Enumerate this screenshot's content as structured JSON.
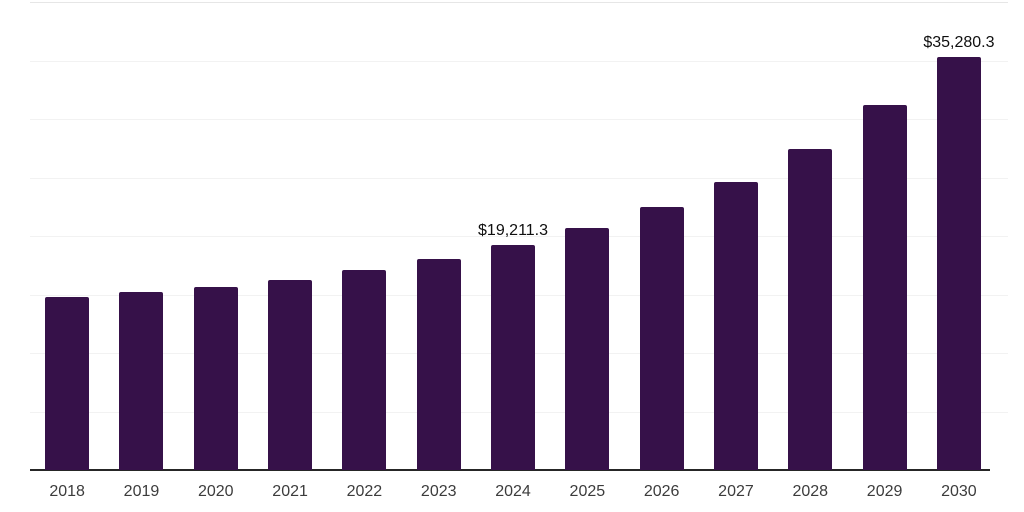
{
  "colors": {
    "background": "#ffffff",
    "bar": "#361149",
    "gridline": "#f2f2f2",
    "top_gridline": "#e6e6e6",
    "axis_line": "#262626",
    "data_label": "#0f0f0f",
    "tick_label": "#3c3c3c"
  },
  "chart_data": {
    "type": "bar",
    "title": "",
    "xlabel": "",
    "ylabel": "",
    "categories": [
      "2018",
      "2019",
      "2020",
      "2021",
      "2022",
      "2023",
      "2024",
      "2025",
      "2026",
      "2027",
      "2028",
      "2029",
      "2030"
    ],
    "values": [
      14770,
      15240,
      15670,
      16270,
      17130,
      18070,
      19211.3,
      20720,
      22520,
      24580,
      27400,
      31170,
      35280.3
    ],
    "ylim": [
      0,
      40000
    ],
    "gridline_step": 5000,
    "grid": true,
    "legend": false,
    "y_axis_labels_visible": false,
    "data_labels": [
      {
        "category": "2024",
        "text": "$19,211.3"
      },
      {
        "category": "2030",
        "text": "$35,280.3"
      }
    ]
  }
}
